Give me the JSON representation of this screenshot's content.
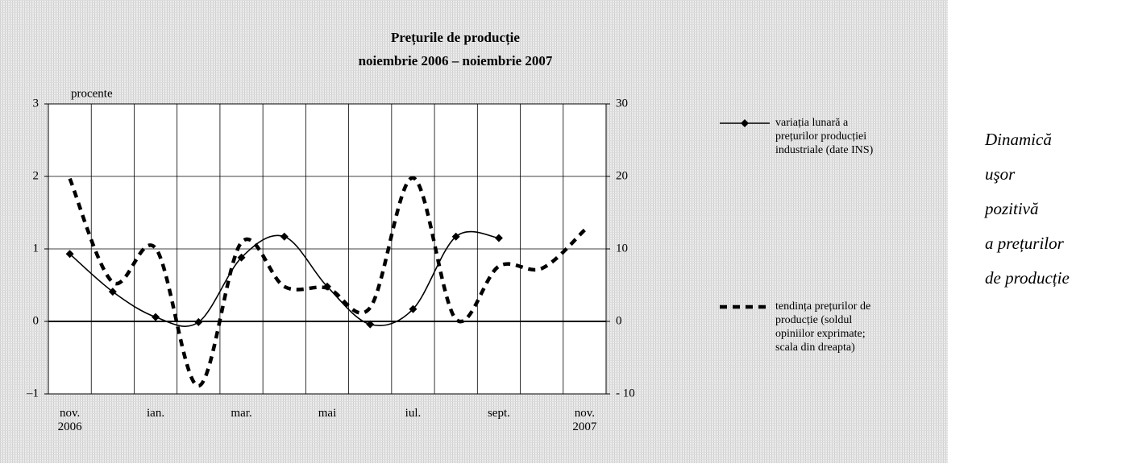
{
  "chart_data": {
    "type": "line",
    "title": "Prețurile de producție",
    "subtitle": "noiembrie 2006 – noiembrie 2007",
    "y_label": "procente",
    "categories": [
      "nov. 2006",
      null,
      "ian.",
      null,
      "mar.",
      null,
      "mai",
      null,
      "iul.",
      null,
      "sept.",
      null,
      "nov. 2007"
    ],
    "ylim": [
      -1,
      3
    ],
    "yticks": [
      {
        "value": -1,
        "label": "–1"
      },
      0,
      1,
      2,
      3
    ],
    "y2lim": [
      -10,
      30
    ],
    "y2ticks": [
      {
        "value": -10,
        "label": "- 10"
      },
      0,
      10,
      20,
      30
    ],
    "grid": true,
    "series": [
      {
        "name": "variația lunară a prețurilor producției industriale (date INS)",
        "color": "#000000",
        "style": "solid",
        "marker": "diamond",
        "values": [
          0.93,
          0.41,
          0.06,
          -0.01,
          0.88,
          1.17,
          0.48,
          -0.04,
          0.17,
          1.17,
          1.15,
          null,
          null
        ]
      },
      {
        "name": "tendința prețurilor de producție (soldul opiniilor exprimate; scala din dreapta)",
        "color": "#000000",
        "style": "dashed",
        "axis": "y2",
        "values": [
          19.7,
          5.4,
          10.1,
          -8.9,
          10.9,
          4.8,
          4.6,
          1.9,
          19.8,
          0.3,
          7.6,
          7.3,
          12.6
        ]
      }
    ]
  },
  "aside": {
    "lines": [
      "Dinamică",
      "uşor",
      "pozitivă",
      "a prețurilor",
      "de producție"
    ]
  }
}
